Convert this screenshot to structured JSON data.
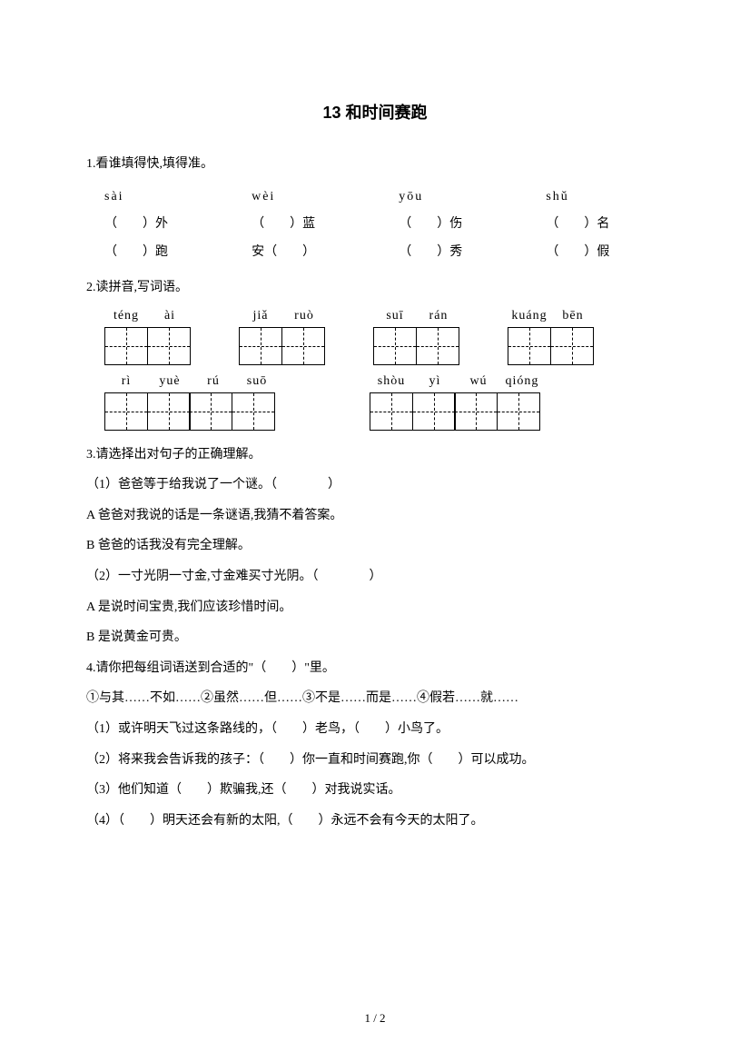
{
  "title": "13 和时间赛跑",
  "q1": {
    "prompt": "1.看谁填得快,填得准。",
    "cols": [
      {
        "pinyin": "sài",
        "r1": "（　　）外",
        "r2": "（　　）跑"
      },
      {
        "pinyin": "wèi",
        "r1": "（　　）蓝",
        "r2": "安（　　）"
      },
      {
        "pinyin": "yōu",
        "r1": "（　　）伤",
        "r2": "（　　）秀"
      },
      {
        "pinyin": "shǔ",
        "r1": "（　　）名",
        "r2": "（　　）假"
      }
    ]
  },
  "q2": {
    "prompt": "2.读拼音,写词语。",
    "row1": [
      {
        "cells": [
          "téng",
          "ài"
        ]
      },
      {
        "cells": [
          "jiǎ",
          "ruò"
        ]
      },
      {
        "cells": [
          "suī",
          "rán"
        ]
      },
      {
        "cells": [
          "kuáng",
          "bēn"
        ]
      }
    ],
    "row2": [
      {
        "cells": [
          "rì",
          "yuè",
          "rú",
          "suō"
        ]
      },
      {
        "cells": [
          "shòu",
          "yì",
          "wú",
          "qióng"
        ]
      }
    ]
  },
  "q3": {
    "prompt": "3.请选择出对句子的正确理解。",
    "items": [
      "（1）爸爸等于给我说了一个谜。（　　　　）",
      "A 爸爸对我说的话是一条谜语,我猜不着答案。",
      "B 爸爸的话我没有完全理解。",
      "（2）一寸光阴一寸金,寸金难买寸光阴。（　　　　）",
      "A 是说时间宝贵,我们应该珍惜时间。",
      "B 是说黄金可贵。"
    ]
  },
  "q4": {
    "prompt": "4.请你把每组词语送到合适的\"（　　）\"里。",
    "options": "①与其……不如……②虽然……但……③不是……而是……④假若……就……",
    "items": [
      "（1）或许明天飞过这条路线的，（　　）老鸟，（　　）小鸟了。",
      "（2）将来我会告诉我的孩子：（　　）你一直和时间赛跑,你（　　）可以成功。",
      "（3）他们知道（　　）欺骗我,还（　　）对我说实话。",
      "（4）（　　）明天还会有新的太阳,（　　）永远不会有今天的太阳了。"
    ]
  },
  "pageNum": "1 / 2"
}
